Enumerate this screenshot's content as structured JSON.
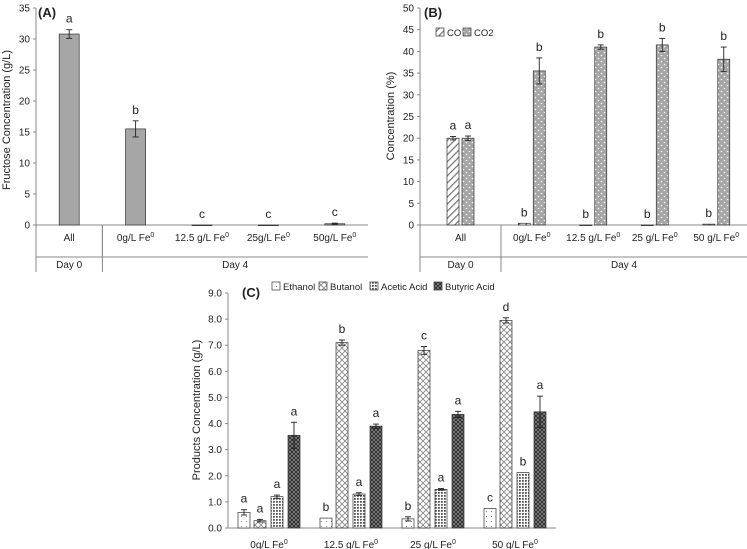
{
  "chart_data": [
    {
      "panel": "(A)",
      "type": "bar",
      "ylabel": "Fructose Concentration (g/L)",
      "ylim": [
        0,
        35
      ],
      "yticks": [
        0,
        5,
        10,
        15,
        20,
        25,
        30,
        35
      ],
      "categories": [
        "All",
        "0g/L Fe",
        "12.5 g/L Fe",
        "25g/L Fe",
        "50g/L Fe"
      ],
      "category_sup": [
        "",
        "0",
        "0",
        "0",
        "0"
      ],
      "groups": [
        {
          "label": "Day 0",
          "span": 1
        },
        {
          "label": "Day 4",
          "span": 4
        }
      ],
      "series": [
        {
          "name": "Fructose",
          "color": "#a6a6a6",
          "values": [
            30.8,
            15.5,
            0,
            0,
            0.2
          ],
          "errors": [
            0.7,
            1.3,
            0,
            0,
            0.1
          ],
          "letters": [
            "a",
            "b",
            "c",
            "c",
            "c"
          ]
        }
      ]
    },
    {
      "panel": "(B)",
      "type": "bar",
      "ylabel": "Concentration (%)",
      "ylim": [
        0,
        50
      ],
      "yticks": [
        0,
        5,
        10,
        15,
        20,
        25,
        30,
        35,
        40,
        45,
        50
      ],
      "categories": [
        "All",
        "0g/L Fe",
        "12.5 g/L Fe",
        "25 g/L Fe",
        "50 g/L Fe"
      ],
      "category_sup": [
        "",
        "0",
        "0",
        "0",
        "0"
      ],
      "groups": [
        {
          "label": "Day 0",
          "span": 1
        },
        {
          "label": "Day 4",
          "span": 4
        }
      ],
      "series": [
        {
          "name": "CO",
          "pattern": "diag",
          "values": [
            20,
            0.4,
            0,
            0,
            0.2
          ],
          "errors": [
            0.4,
            0,
            0,
            0,
            0
          ],
          "letters": [
            "a",
            "b",
            "b",
            "b",
            "b"
          ]
        },
        {
          "name": "CO2",
          "pattern": "dots",
          "values": [
            20,
            35.5,
            41,
            41.5,
            38.2
          ],
          "errors": [
            0.5,
            3,
            0.5,
            1.5,
            2.8
          ],
          "letters": [
            "a",
            "b",
            "b",
            "b",
            "b"
          ]
        }
      ]
    },
    {
      "panel": "(C)",
      "type": "bar",
      "ylabel": "Products Concentration (g/L)",
      "ylim": [
        0,
        9
      ],
      "yticks": [
        "0.0",
        "1.0",
        "2.0",
        "3.0",
        "4.0",
        "5.0",
        "6.0",
        "7.0",
        "8.0",
        "9.0"
      ],
      "categories": [
        "0g/L Fe",
        "12.5 g/L Fe",
        "25 g/L Fe",
        "50 g/L Fe"
      ],
      "category_sup": [
        "0",
        "0",
        "0",
        "0"
      ],
      "series": [
        {
          "name": "Ethanol",
          "pattern": "sparse",
          "values": [
            0.6,
            0.38,
            0.35,
            0.75
          ],
          "errors": [
            0.1,
            0,
            0.08,
            0
          ],
          "letters": [
            "a",
            "b",
            "b",
            "c"
          ]
        },
        {
          "name": "Butanol",
          "pattern": "cross",
          "values": [
            0.28,
            7.1,
            6.8,
            7.95
          ],
          "errors": [
            0.05,
            0.1,
            0.15,
            0.1
          ],
          "letters": [
            "a",
            "b",
            "c",
            "d"
          ]
        },
        {
          "name": "Acetic Acid",
          "pattern": "dense",
          "values": [
            1.2,
            1.3,
            1.48,
            2.12
          ],
          "errors": [
            0.06,
            0.05,
            0.03,
            0
          ],
          "letters": [
            "a",
            "a",
            "a",
            "b"
          ]
        },
        {
          "name": "Butyric Acid",
          "pattern": "grid",
          "values": [
            3.55,
            3.9,
            4.35,
            4.45
          ],
          "errors": [
            0.5,
            0.08,
            0.12,
            0.6
          ],
          "letters": [
            "a",
            "a",
            "a",
            "a"
          ]
        }
      ]
    }
  ]
}
